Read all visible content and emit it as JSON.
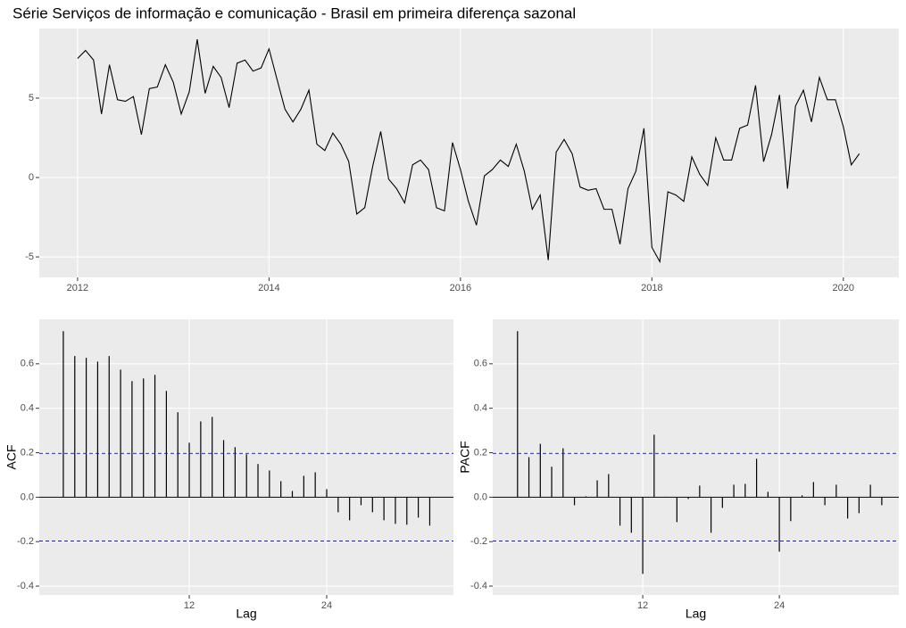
{
  "chart_data": [
    {
      "type": "line",
      "title": "Série Serviços de informação e comunicação - Brasil em primeira diferença sazonal",
      "x": [
        2012,
        2012.083,
        2012.167,
        2012.25,
        2012.333,
        2012.417,
        2012.5,
        2012.583,
        2012.667,
        2012.75,
        2012.833,
        2012.917,
        2013,
        2013.083,
        2013.167,
        2013.25,
        2013.333,
        2013.417,
        2013.5,
        2013.583,
        2013.667,
        2013.75,
        2013.833,
        2013.917,
        2014,
        2014.083,
        2014.167,
        2014.25,
        2014.333,
        2014.417,
        2014.5,
        2014.583,
        2014.667,
        2014.75,
        2014.833,
        2014.917,
        2015,
        2015.083,
        2015.167,
        2015.25,
        2015.333,
        2015.417,
        2015.5,
        2015.583,
        2015.667,
        2015.75,
        2015.833,
        2015.917,
        2016,
        2016.083,
        2016.167,
        2016.25,
        2016.333,
        2016.417,
        2016.5,
        2016.583,
        2016.667,
        2016.75,
        2016.833,
        2016.917,
        2017,
        2017.083,
        2017.167,
        2017.25,
        2017.333,
        2017.417,
        2017.5,
        2017.583,
        2017.667,
        2017.75,
        2017.833,
        2017.917,
        2018,
        2018.083,
        2018.167,
        2018.25,
        2018.333,
        2018.417,
        2018.5,
        2018.583,
        2018.667,
        2018.75,
        2018.833,
        2018.917,
        2019,
        2019.083,
        2019.167,
        2019.25,
        2019.333,
        2019.417,
        2019.5,
        2019.583,
        2019.667,
        2019.75,
        2019.833,
        2019.917,
        2020,
        2020.083,
        2020.167
      ],
      "values": [
        7.5,
        8.0,
        7.4,
        4.0,
        7.1,
        4.9,
        4.8,
        5.1,
        2.7,
        5.6,
        5.7,
        7.1,
        6.0,
        4.0,
        5.4,
        8.7,
        5.3,
        7.0,
        6.3,
        4.4,
        7.2,
        7.4,
        6.7,
        6.9,
        8.1,
        6.2,
        4.3,
        3.5,
        4.3,
        5.5,
        2.1,
        1.7,
        2.8,
        2.1,
        1.0,
        -2.3,
        -1.9,
        0.7,
        2.9,
        -0.1,
        -0.7,
        -1.6,
        0.8,
        1.1,
        0.5,
        -1.9,
        -2.1,
        2.2,
        0.5,
        -1.5,
        -3.0,
        0.1,
        0.5,
        1.1,
        0.7,
        2.1,
        0.4,
        -2.0,
        -1.1,
        -5.2,
        1.6,
        2.4,
        1.5,
        -0.6,
        -0.8,
        -0.7,
        -2.0,
        -2.0,
        -4.2,
        -0.7,
        0.4,
        3.1,
        -4.4,
        -5.3,
        -0.9,
        -1.1,
        -1.5,
        1.3,
        0.2,
        -0.5,
        2.5,
        1.1,
        1.1,
        3.1,
        3.3,
        5.8,
        1.0,
        2.7,
        5.2,
        -0.7,
        4.5,
        5.5,
        3.5,
        6.3,
        4.9,
        4.9,
        3.2,
        0.8,
        1.5
      ],
      "color": "#000000",
      "xlim": [
        2011.6,
        2020.58
      ],
      "xticks": [
        2012,
        2014,
        2016,
        2018,
        2020
      ],
      "ylim": [
        -6.29,
        9.38
      ],
      "yticks": [
        -5,
        0,
        5
      ],
      "grid": true
    },
    {
      "type": "bar",
      "xlabel": "Lag",
      "ylabel": "ACF",
      "x": [
        1,
        2,
        3,
        4,
        5,
        6,
        7,
        8,
        9,
        10,
        11,
        12,
        13,
        14,
        15,
        16,
        17,
        18,
        19,
        20,
        21,
        22,
        23,
        24,
        25,
        26,
        27,
        28,
        29,
        30,
        31,
        32,
        33
      ],
      "values": [
        0.747,
        0.635,
        0.627,
        0.61,
        0.635,
        0.574,
        0.522,
        0.534,
        0.55,
        0.478,
        0.382,
        0.245,
        0.341,
        0.361,
        0.257,
        0.225,
        0.193,
        0.149,
        0.12,
        0.072,
        0.028,
        0.096,
        0.112,
        0.036,
        -0.068,
        -0.104,
        -0.036,
        -0.068,
        -0.104,
        -0.12,
        -0.124,
        -0.092,
        -0.128
      ],
      "color": "#000000",
      "confidence_bounds": [
        0.197,
        -0.197
      ],
      "bound_color": "#1c1ca8",
      "xlim": [
        -1.1,
        35.07
      ],
      "xticks": [
        12,
        24
      ],
      "ylim": [
        -0.44,
        0.8
      ],
      "yticks": [
        {
          "value": -0.4,
          "label": "-0.4"
        },
        {
          "value": -0.2,
          "label": "-0.2"
        },
        {
          "value": 0,
          "label": "0.0"
        },
        0.2,
        0.4,
        0.6
      ],
      "grid": true
    },
    {
      "type": "bar",
      "xlabel": "Lag",
      "ylabel": "PACF",
      "x": [
        1,
        2,
        3,
        4,
        5,
        6,
        7,
        8,
        9,
        10,
        11,
        12,
        13,
        14,
        15,
        16,
        17,
        18,
        19,
        20,
        21,
        22,
        23,
        24,
        25,
        26,
        27,
        28,
        29,
        30,
        31,
        32,
        33
      ],
      "values": [
        0.747,
        0.18,
        0.24,
        0.137,
        0.22,
        -0.036,
        0.004,
        0.076,
        0.104,
        -0.128,
        -0.16,
        -0.345,
        0.281,
        0.002,
        -0.112,
        -0.008,
        0.052,
        -0.16,
        -0.048,
        0.056,
        0.06,
        0.173,
        0.024,
        -0.245,
        -0.108,
        0.008,
        0.068,
        -0.036,
        0.056,
        -0.096,
        -0.072,
        0.056,
        -0.036
      ],
      "color": "#000000",
      "confidence_bounds": [
        0.197,
        -0.197
      ],
      "bound_color": "#1c1ca8",
      "xlim": [
        -1.18,
        34.5
      ],
      "xticks": [
        12,
        24
      ],
      "ylim": [
        -0.44,
        0.8
      ],
      "yticks": [
        {
          "value": -0.4,
          "label": "-0.4"
        },
        {
          "value": -0.2,
          "label": "-0.2"
        },
        {
          "value": 0,
          "label": "0.0"
        },
        0.2,
        0.4,
        0.6
      ],
      "grid": true
    }
  ]
}
